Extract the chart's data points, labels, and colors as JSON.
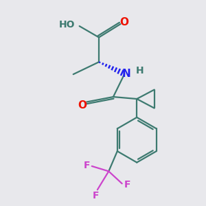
{
  "bg_color": "#e8e8ec",
  "bond_color": "#3d7a70",
  "o_color": "#ee1100",
  "n_color": "#2222ee",
  "f_color": "#cc44cc",
  "h_color": "#3d7a70",
  "lw": 1.6,
  "dpi": 100,
  "figsize": [
    3.0,
    3.0
  ],
  "xlim": [
    0,
    10
  ],
  "ylim": [
    0,
    10
  ]
}
